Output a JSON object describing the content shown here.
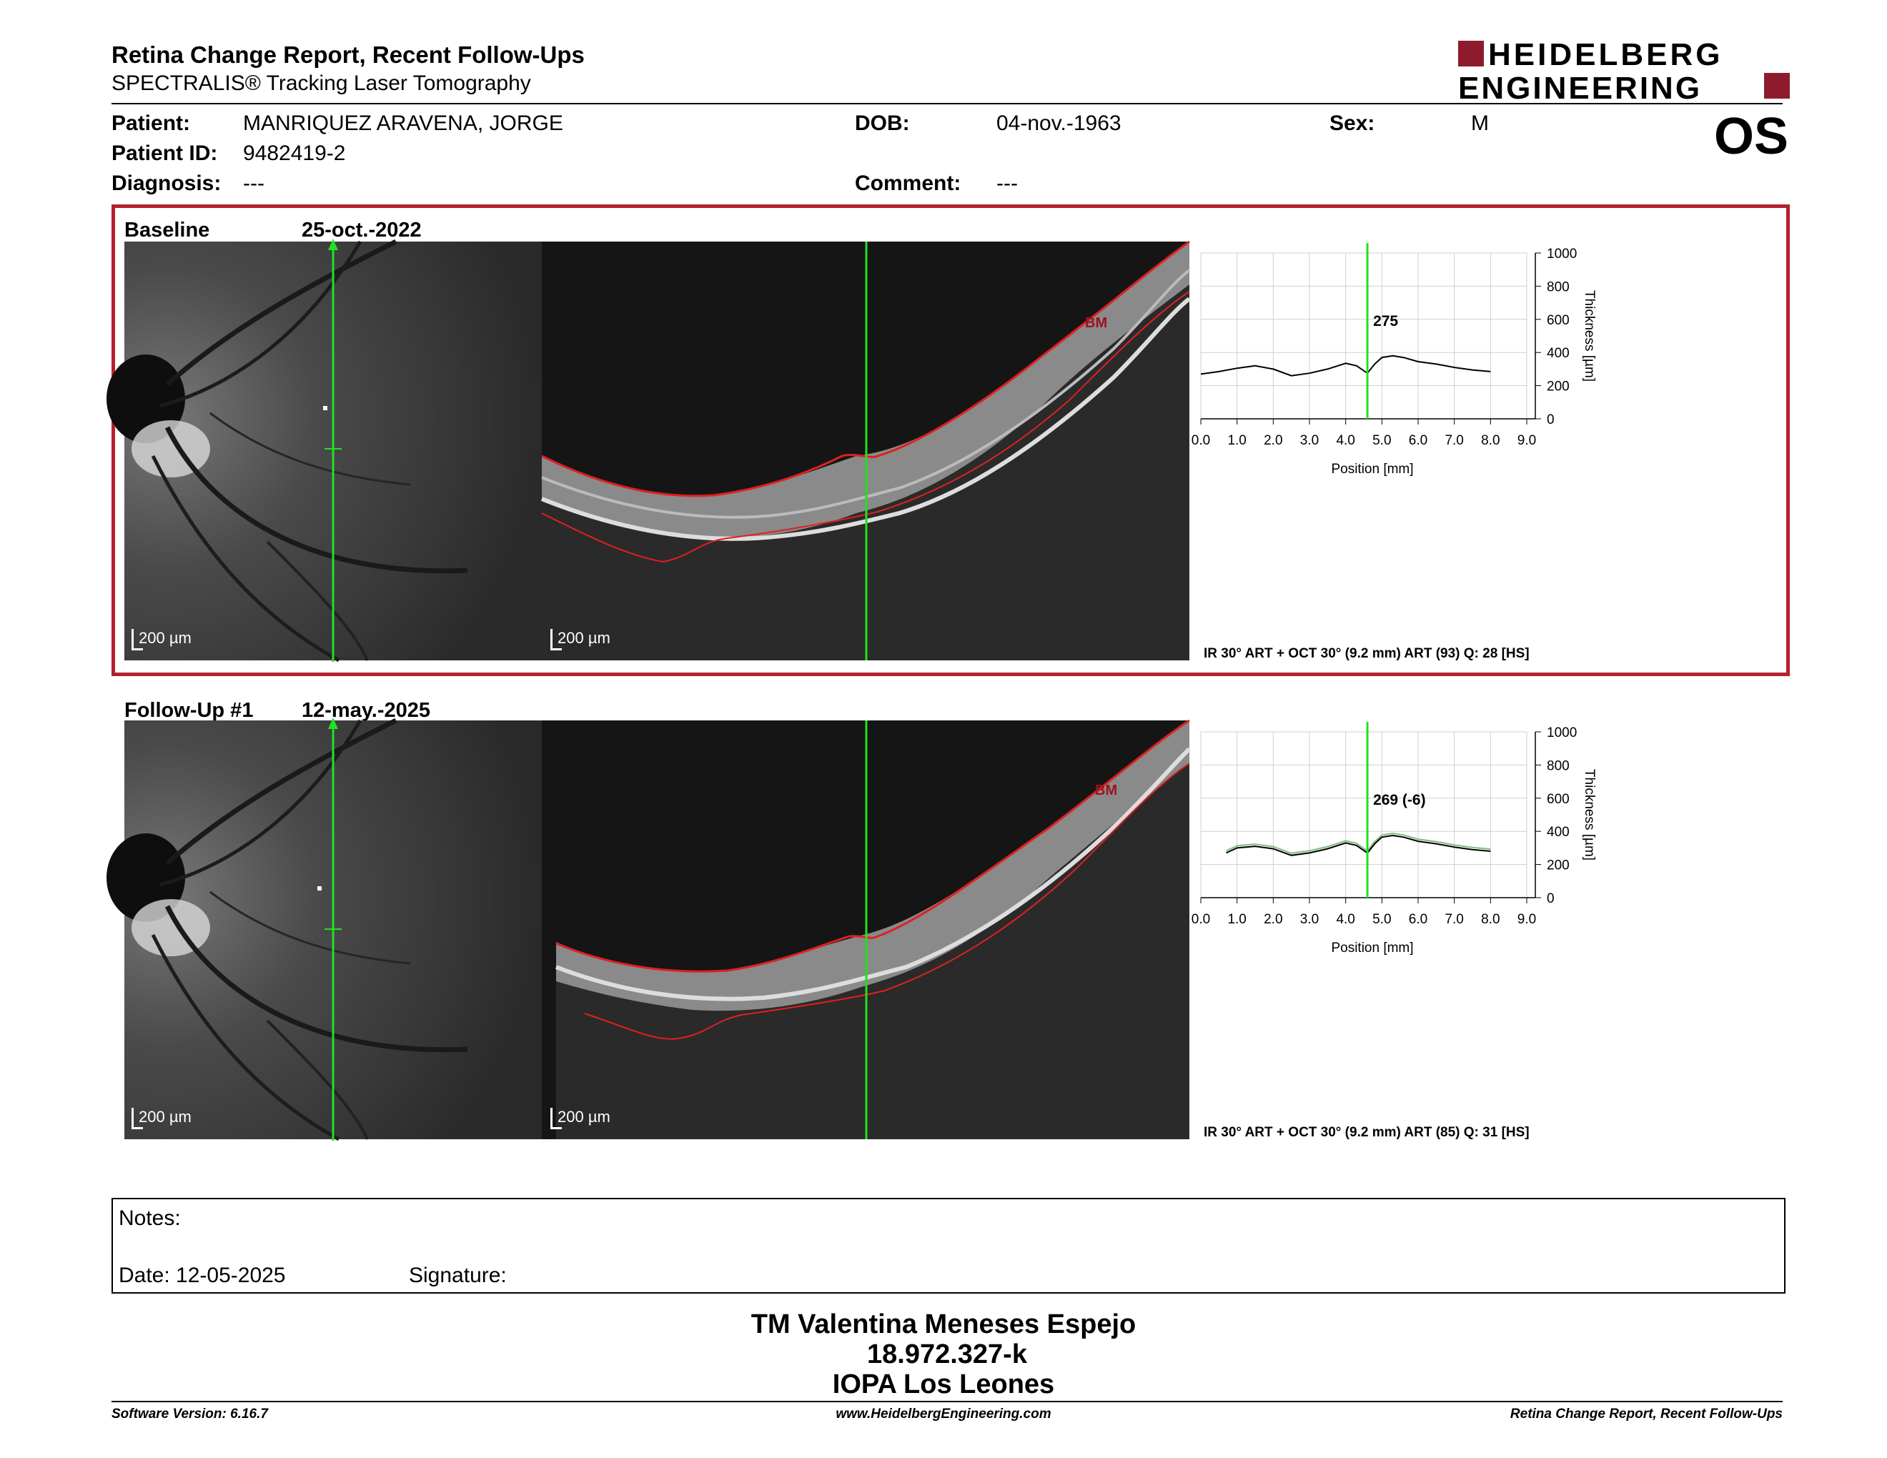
{
  "header": {
    "title": "Retina Change Report, Recent Follow-Ups",
    "subtitle": "SPECTRALIS® Tracking Laser Tomography",
    "eye": "OS",
    "logo_line1": "HEIDELBERG",
    "logo_line2": "ENGINEERING",
    "brand_color": "#8e1b2d"
  },
  "patient": {
    "name_label": "Patient:",
    "name": "MANRIQUEZ ARAVENA, JORGE",
    "id_label": "Patient ID:",
    "id": "9482419-2",
    "diagnosis_label": "Diagnosis:",
    "diagnosis": "---",
    "dob_label": "DOB:",
    "dob": "04-nov.-1963",
    "comment_label": "Comment:",
    "comment": "---",
    "sex_label": "Sex:",
    "sex": "M"
  },
  "exams": [
    {
      "label": "Baseline",
      "date": "25-oct.-2022",
      "ir_scale": "200 µm",
      "oct_scale": "200 µm",
      "bm_label": "BM",
      "caption": "IR 30° ART + OCT 30° (9.2 mm) ART (93) Q: 28 [HS]",
      "thickness_label": "275"
    },
    {
      "label": "Follow-Up #1",
      "date": "12-may.-2025",
      "ir_scale": "200 µm",
      "oct_scale": "200 µm",
      "bm_label": "BM",
      "caption": "IR 30° ART + OCT 30° (9.2 mm) ART (85) Q: 31 [HS]",
      "thickness_label": "269 (-6)"
    }
  ],
  "chart_data": [
    {
      "type": "line",
      "xlabel": "Position [mm]",
      "ylabel": "Thickness [µm]",
      "xlim": [
        0,
        9
      ],
      "ylim": [
        0,
        1000
      ],
      "xticks": [
        "0.0",
        "1.0",
        "2.0",
        "3.0",
        "4.0",
        "5.0",
        "6.0",
        "7.0",
        "8.0",
        "9.0"
      ],
      "yticks": [
        "0",
        "200",
        "400",
        "600",
        "800",
        "1000"
      ],
      "grid": true,
      "marker_x": 4.6,
      "marker_label": "275",
      "series": [
        {
          "x": [
            0.0,
            0.5,
            1.0,
            1.5,
            2.0,
            2.5,
            3.0,
            3.5,
            4.0,
            4.3,
            4.6,
            4.8,
            5.0,
            5.3,
            5.6,
            6.0,
            6.5,
            7.0,
            7.5,
            8.0
          ],
          "y": [
            270,
            285,
            305,
            320,
            300,
            260,
            275,
            300,
            335,
            320,
            275,
            330,
            370,
            380,
            370,
            345,
            330,
            310,
            295,
            285
          ]
        }
      ]
    },
    {
      "type": "line",
      "xlabel": "Position [mm]",
      "ylabel": "Thickness [µm]",
      "xlim": [
        0,
        9
      ],
      "ylim": [
        0,
        1000
      ],
      "xticks": [
        "0.0",
        "1.0",
        "2.0",
        "3.0",
        "4.0",
        "5.0",
        "6.0",
        "7.0",
        "8.0",
        "9.0"
      ],
      "yticks": [
        "0",
        "200",
        "400",
        "600",
        "800",
        "1000"
      ],
      "grid": true,
      "marker_x": 4.6,
      "marker_label": "269 (-6)",
      "series": [
        {
          "x": [
            0.7,
            1.0,
            1.5,
            2.0,
            2.5,
            3.0,
            3.5,
            4.0,
            4.3,
            4.6,
            4.8,
            5.0,
            5.3,
            5.6,
            6.0,
            6.5,
            7.0,
            7.5,
            8.0
          ],
          "y": [
            270,
            300,
            310,
            295,
            255,
            270,
            295,
            330,
            315,
            269,
            325,
            365,
            375,
            365,
            340,
            325,
            305,
            290,
            280
          ]
        }
      ]
    }
  ],
  "notes": {
    "label": "Notes:",
    "date_label": "Date: 12-05-2025",
    "signature_label": "Signature:"
  },
  "technician": {
    "name": "TM Valentina Meneses Espejo",
    "id": "18.972.327-k",
    "institution": "IOPA Los Leones"
  },
  "footer": {
    "software": "Software Version: 6.16.7",
    "website": "www.HeidelbergEngineering.com",
    "report": "Retina Change Report, Recent Follow-Ups"
  }
}
